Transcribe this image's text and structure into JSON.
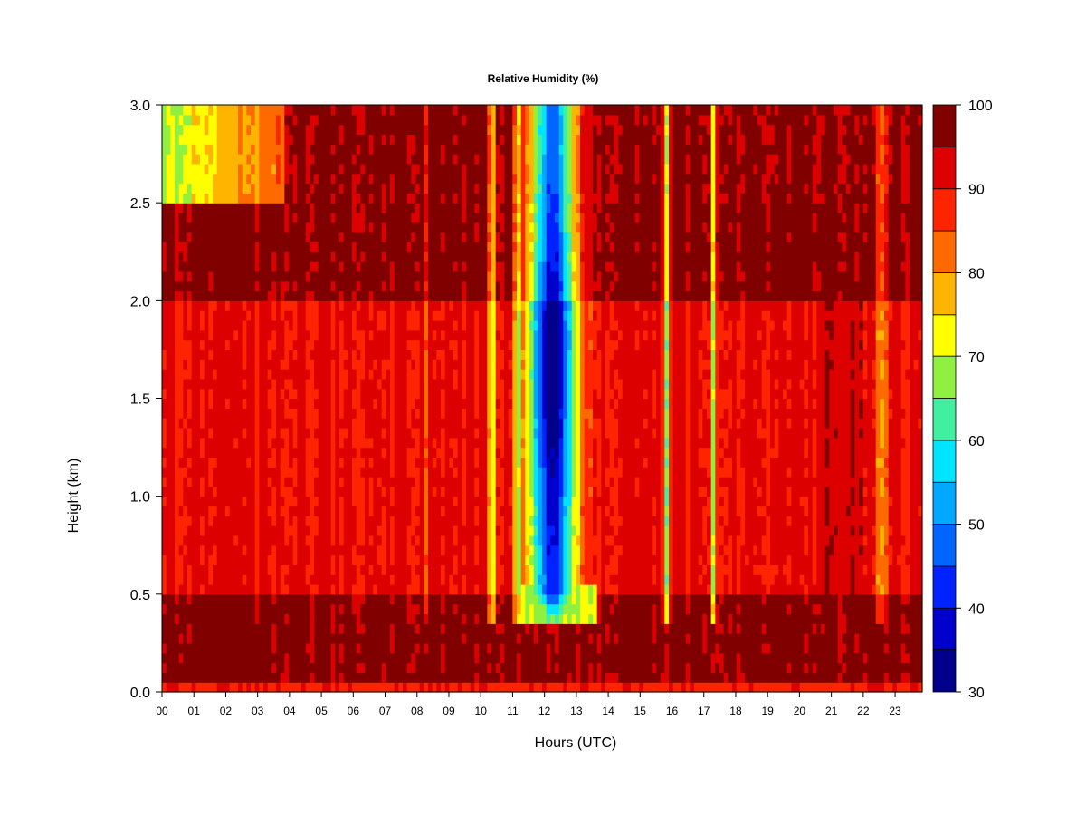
{
  "chart_data": {
    "type": "heatmap",
    "title": "Relative Humidity (%)",
    "xlabel": "Hours (UTC)",
    "ylabel": "Height (km)",
    "x_ticks": [
      "00",
      "01",
      "02",
      "03",
      "04",
      "05",
      "06",
      "07",
      "08",
      "09",
      "10",
      "11",
      "12",
      "13",
      "14",
      "15",
      "16",
      "17",
      "18",
      "19",
      "20",
      "21",
      "22",
      "23"
    ],
    "y_ticks": [
      "0.0",
      "0.5",
      "1.0",
      "1.5",
      "2.0",
      "2.5",
      "3.0"
    ],
    "xlim": [
      0,
      23.85
    ],
    "ylim": [
      0,
      3.0
    ],
    "colorbar": {
      "ticks": [
        "30",
        "40",
        "50",
        "60",
        "70",
        "80",
        "90",
        "100"
      ],
      "range": [
        30,
        100
      ],
      "levels": [
        30,
        35,
        40,
        45,
        50,
        55,
        60,
        65,
        70,
        75,
        80,
        85,
        90,
        95,
        100
      ],
      "colors": [
        "#00008b",
        "#0000cd",
        "#0022ff",
        "#0066ff",
        "#00a8ff",
        "#00e5ff",
        "#40f0a0",
        "#90f040",
        "#ffff00",
        "#ffb400",
        "#ff6a00",
        "#ff2400",
        "#dd0000",
        "#800000"
      ]
    },
    "features": [
      {
        "description": "near-saturated lower layer",
        "hours": [
          0,
          23.85
        ],
        "height_km": [
          0.05,
          0.5
        ],
        "rh": 97
      },
      {
        "description": "moist upper layer",
        "hours": [
          0,
          23.85
        ],
        "height_km": [
          2.0,
          2.5
        ],
        "rh": 97
      },
      {
        "description": "dry core",
        "hours": [
          11.5,
          13.3
        ],
        "height_km": [
          0.4,
          3.0
        ],
        "rh_min": 33
      },
      {
        "description": "narrow dry streaks",
        "hours": [
          10.3,
          15.9,
          17.3,
          22.5
        ],
        "rh_min": 65
      }
    ]
  }
}
